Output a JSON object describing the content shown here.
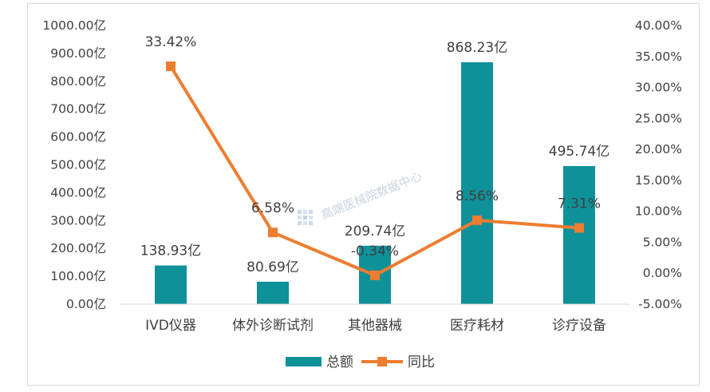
{
  "chart_data": {
    "type": "bar+line",
    "categories": [
      "IVD仪器",
      "体外诊断试剂",
      "其他器械",
      "医疗耗材",
      "诊疗设备"
    ],
    "series": [
      {
        "name": "总额",
        "type": "bar",
        "axis": "left",
        "values": [
          138.93,
          80.69,
          209.74,
          868.23,
          495.74
        ],
        "labels": [
          "138.93亿",
          "80.69亿",
          "209.74亿",
          "868.23亿",
          "495.74亿"
        ]
      },
      {
        "name": "同比",
        "type": "line",
        "axis": "right",
        "values": [
          33.42,
          6.58,
          -0.34,
          8.56,
          7.31
        ],
        "labels": [
          "33.42%",
          "6.58%",
          "-0.34%",
          "8.56%",
          "7.31%"
        ]
      }
    ],
    "y_left": {
      "ylim": [
        0,
        1000
      ],
      "ticks": [
        0,
        100,
        200,
        300,
        400,
        500,
        600,
        700,
        800,
        900,
        1000
      ],
      "tick_labels": [
        "0.00亿",
        "100.00亿",
        "200.00亿",
        "300.00亿",
        "400.00亿",
        "500.00亿",
        "600.00亿",
        "700.00亿",
        "800.00亿",
        "900.00亿",
        "1000.00亿"
      ]
    },
    "y_right": {
      "ylim": [
        -5,
        40
      ],
      "ticks": [
        -5,
        0,
        5,
        10,
        15,
        20,
        25,
        30,
        35,
        40
      ],
      "tick_labels": [
        "-5.00%",
        "0.00%",
        "5.00%",
        "10.00%",
        "15.00%",
        "20.00%",
        "25.00%",
        "30.00%",
        "35.00%",
        "40.00%"
      ]
    },
    "legend": {
      "placement": "bottom",
      "entries": [
        "总额",
        "同比"
      ]
    },
    "grid": false,
    "colors": {
      "bar": "#0f9199",
      "line": "#ed7d31"
    },
    "watermark": "高端医械院数据中心"
  }
}
